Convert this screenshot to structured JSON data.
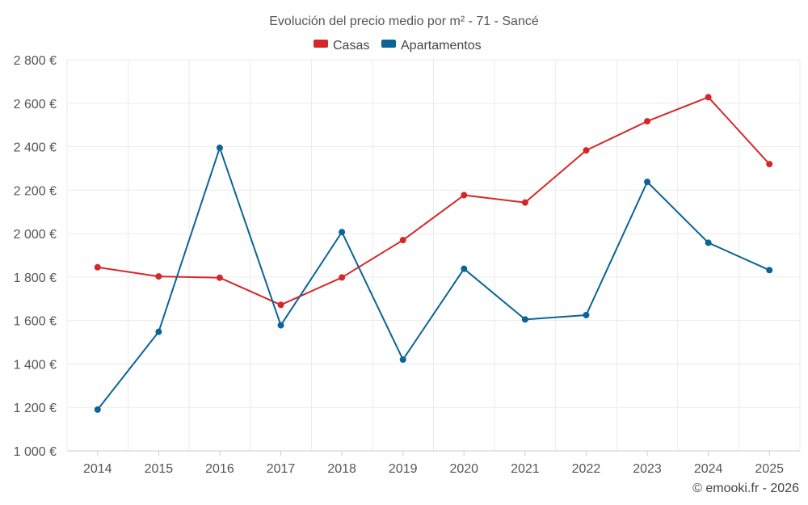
{
  "chart_data": {
    "type": "line",
    "title": "Evolución del precio medio por m² - 71 - Sancé",
    "categories": [
      "2014",
      "2015",
      "2016",
      "2017",
      "2018",
      "2019",
      "2020",
      "2021",
      "2022",
      "2023",
      "2024",
      "2025"
    ],
    "series": [
      {
        "name": "Casas",
        "color": "#d62728",
        "values": [
          1845,
          1803,
          1797,
          1672,
          1798,
          1970,
          2177,
          2143,
          2383,
          2517,
          2628,
          2320
        ]
      },
      {
        "name": "Apartamentos",
        "color": "#0b6496",
        "values": [
          1190,
          1548,
          2395,
          1578,
          2007,
          1420,
          1838,
          1605,
          1625,
          2238,
          1958,
          1832
        ]
      }
    ],
    "ylim": [
      1000,
      2800
    ],
    "yticks": [
      1000,
      1200,
      1400,
      1600,
      1800,
      2000,
      2200,
      2400,
      2600,
      2800
    ],
    "ytick_labels": [
      "1 000 €",
      "1 200 €",
      "1 400 €",
      "1 600 €",
      "1 800 €",
      "2 000 €",
      "2 200 €",
      "2 400 €",
      "2 600 €",
      "2 800 €"
    ],
    "grid": true,
    "legend_position": "top-center"
  },
  "credit": "© emooki.fr - 2026"
}
